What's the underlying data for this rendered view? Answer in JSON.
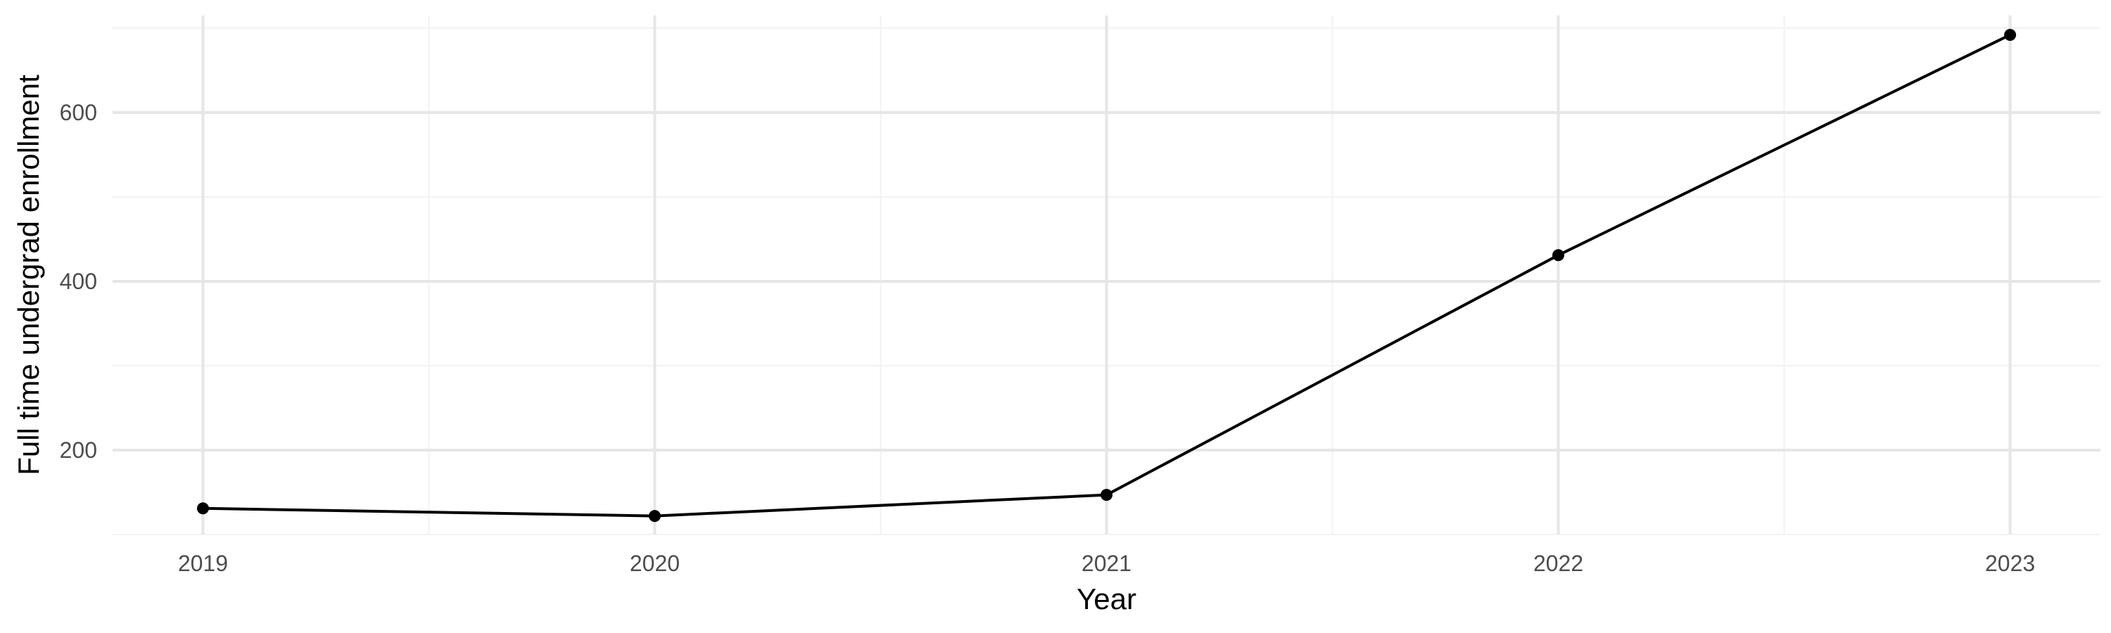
{
  "chart_data": {
    "type": "line",
    "title": "",
    "xlabel": "Year",
    "ylabel": "Full time undergrad enrollment",
    "x": [
      2019,
      2020,
      2021,
      2022,
      2023
    ],
    "x_tick_labels": [
      "2019",
      "2020",
      "2021",
      "2022",
      "2023"
    ],
    "series": [
      {
        "values": [
          131,
          122,
          147,
          431,
          692
        ]
      }
    ],
    "xlim": [
      2018.8,
      2023.2
    ],
    "ylim": [
      100,
      715
    ],
    "y_ticks": [
      200,
      400,
      600
    ],
    "y_minor_ticks": [
      100,
      300,
      500,
      700
    ],
    "grid": true,
    "legend": "none",
    "colors": {
      "line": "#000000",
      "point": "#000000",
      "grid_major": "#e6e6e6",
      "grid_minor": "#f2f2f2",
      "tick_text": "#4d4d4d",
      "axis_title": "#000000"
    }
  }
}
